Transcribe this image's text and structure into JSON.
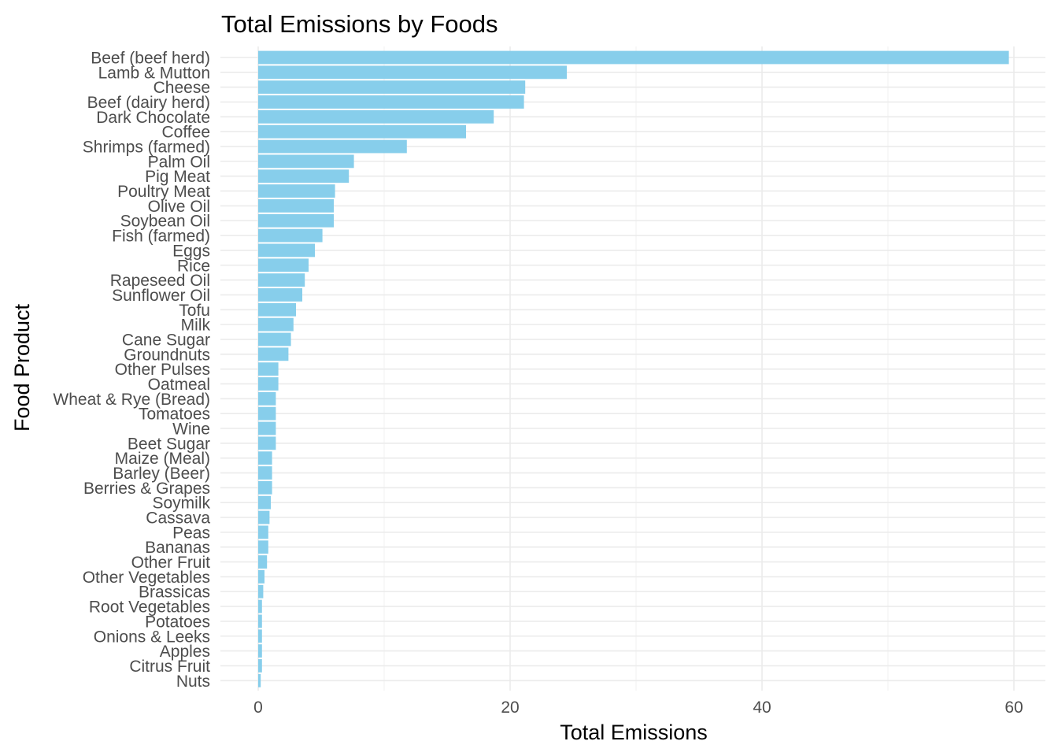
{
  "chart_data": {
    "type": "bar",
    "orientation": "horizontal",
    "title": "Total Emissions by Foods",
    "xlabel": "Total Emissions",
    "ylabel": "Food Product",
    "xlim": [
      0,
      62.5
    ],
    "xticks": [
      0,
      20,
      40,
      60
    ],
    "grid": true,
    "legend": "none",
    "bar_color": "#87ceeb",
    "categories": [
      "Beef (beef herd)",
      "Lamb & Mutton",
      "Cheese",
      "Beef (dairy herd)",
      "Dark Chocolate",
      "Coffee",
      "Shrimps (farmed)",
      "Palm Oil",
      "Pig Meat",
      "Poultry Meat",
      "Olive Oil",
      "Soybean Oil",
      "Fish (farmed)",
      "Eggs",
      "Rice",
      "Rapeseed Oil",
      "Sunflower Oil",
      "Tofu",
      "Milk",
      "Cane Sugar",
      "Groundnuts",
      "Other Pulses",
      "Oatmeal",
      "Wheat & Rye (Bread)",
      "Tomatoes",
      "Wine",
      "Beet Sugar",
      "Maize (Meal)",
      "Barley (Beer)",
      "Berries & Grapes",
      "Soymilk",
      "Cassava",
      "Peas",
      "Bananas",
      "Other Fruit",
      "Other Vegetables",
      "Brassicas",
      "Root Vegetables",
      "Potatoes",
      "Onions & Leeks",
      "Apples",
      "Citrus Fruit",
      "Nuts"
    ],
    "values": [
      59.6,
      24.5,
      21.2,
      21.1,
      18.7,
      16.5,
      11.8,
      7.6,
      7.2,
      6.1,
      6.0,
      6.0,
      5.1,
      4.5,
      4.0,
      3.7,
      3.5,
      3.0,
      2.8,
      2.6,
      2.4,
      1.6,
      1.6,
      1.4,
      1.4,
      1.4,
      1.4,
      1.1,
      1.1,
      1.1,
      1.0,
      0.9,
      0.8,
      0.8,
      0.7,
      0.5,
      0.4,
      0.3,
      0.3,
      0.3,
      0.3,
      0.3,
      0.2
    ]
  }
}
